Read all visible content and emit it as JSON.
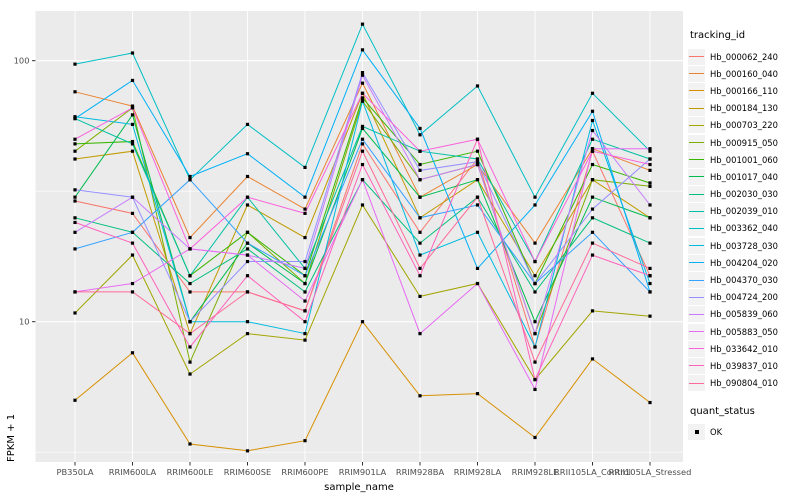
{
  "chart_data": {
    "type": "line",
    "title": "",
    "xlabel": "sample_name",
    "ylabel": "FPKM + 1",
    "y_scale": "log10",
    "ylim": [
      2.9,
      155
    ],
    "y_major_ticks": {
      "values": [
        10,
        100
      ],
      "labels": [
        "10",
        "100"
      ]
    },
    "y_minor_gridlines": [
      3.162,
      31.623
    ],
    "grid": "major-and-minor-white-on-gray",
    "legend_position": "right",
    "panel_background": "#EBEBEB",
    "gridline_color": "#FFFFFF",
    "tick_label_color": "#4D4D4D",
    "point_shape": "filled-square",
    "point_color": "#000000",
    "categories": [
      "PB350LA",
      "RRIM600LA",
      "RRIM600LE",
      "RRIM600SE",
      "RRIM600PE",
      "RRIM901LA",
      "RRIM928BA",
      "RRIM928LA",
      "RRIM928LE",
      "RRII105LA_Control",
      "RRII105LA_Stressed"
    ],
    "legend_title": "tracking_id",
    "series": [
      {
        "name": "Hb_000062_240",
        "color": "#F8766D",
        "values": [
          29,
          26,
          13,
          13,
          11,
          48,
          22,
          42,
          8,
          45,
          15
        ]
      },
      {
        "name": "Hb_000160_040",
        "color": "#EA8331",
        "values": [
          76,
          67,
          21,
          36,
          27,
          82,
          30,
          40,
          20,
          46,
          38
        ]
      },
      {
        "name": "Hb_000166_110",
        "color": "#D89000",
        "values": [
          5,
          7.6,
          3.4,
          3.2,
          3.5,
          10,
          5.2,
          5.3,
          3.6,
          7.2,
          4.9
        ]
      },
      {
        "name": "Hb_000184_130",
        "color": "#C09B00",
        "values": [
          42,
          45,
          9,
          28,
          21,
          75,
          25,
          35,
          15,
          35,
          25
        ]
      },
      {
        "name": "Hb_000703_220",
        "color": "#A3A500",
        "values": [
          10.8,
          18,
          6.3,
          9,
          8.5,
          28,
          12.5,
          14,
          6,
          11,
          10.5
        ]
      },
      {
        "name": "Hb_000915_050",
        "color": "#7CAE00",
        "values": [
          45,
          66,
          7,
          22,
          14,
          70,
          35,
          40,
          9,
          35,
          33
        ]
      },
      {
        "name": "Hb_001001_060",
        "color": "#39B600",
        "values": [
          48,
          49,
          15,
          22,
          15,
          72,
          40,
          45,
          14,
          40,
          34
        ]
      },
      {
        "name": "Hb_001017_040",
        "color": "#00BB4E",
        "values": [
          30,
          62,
          10,
          20,
          14,
          55,
          30,
          35,
          10,
          30,
          25
        ]
      },
      {
        "name": "Hb_002030_030",
        "color": "#00BF7D",
        "values": [
          25,
          22,
          14,
          19,
          13,
          35,
          20,
          30,
          13,
          25,
          20
        ]
      },
      {
        "name": "Hb_002039_010",
        "color": "#00C1A3",
        "values": [
          60,
          48,
          15,
          30,
          16,
          56,
          45,
          42,
          17,
          50,
          42
        ]
      },
      {
        "name": "Hb_003362_040",
        "color": "#00BFC4",
        "values": [
          97,
          107,
          35,
          57,
          39,
          138,
          52,
          80,
          30,
          75,
          45
        ]
      },
      {
        "name": "Hb_003728_030",
        "color": "#00BAE0",
        "values": [
          61,
          57,
          10,
          10,
          9,
          70,
          18,
          22,
          8,
          59,
          14
        ]
      },
      {
        "name": "Hb_004204_020",
        "color": "#00B0F6",
        "values": [
          60,
          84,
          36,
          44,
          30,
          110,
          55,
          16,
          28,
          64,
          13
        ]
      },
      {
        "name": "Hb_004370_030",
        "color": "#35A2FF",
        "values": [
          19,
          22,
          35,
          20,
          15,
          50,
          25,
          28,
          14,
          22,
          13
        ]
      },
      {
        "name": "Hb_004724_200",
        "color": "#9590FF",
        "values": [
          32,
          30,
          10,
          17,
          17,
          90,
          38,
          41,
          14,
          27,
          42
        ]
      },
      {
        "name": "Hb_005839_060",
        "color": "#C77CFF",
        "values": [
          22,
          30,
          19,
          18,
          16,
          88,
          35,
          40,
          9,
          54,
          28
        ]
      },
      {
        "name": "Hb_005883_050",
        "color": "#E76BF3",
        "values": [
          13,
          14,
          19,
          18,
          12,
          35,
          9,
          14,
          5.5,
          46,
          46
        ]
      },
      {
        "name": "Hb_033642_010",
        "color": "#FA62DB",
        "values": [
          50,
          66,
          19,
          30,
          26,
          75,
          45,
          50,
          17,
          45,
          40
        ]
      },
      {
        "name": "Hb_039837_010",
        "color": "#FF62BC",
        "values": [
          24,
          20,
          8,
          15,
          10,
          40,
          15,
          50,
          6,
          18,
          15
        ]
      },
      {
        "name": "Hb_090804_010",
        "color": "#FF6A98",
        "values": [
          13,
          13,
          9,
          13,
          11,
          45,
          16,
          30,
          7,
          20,
          16
        ]
      }
    ],
    "quant_legend": {
      "title": "quant_status",
      "items": [
        {
          "label": "OK",
          "shape": "filled-square",
          "color": "#000000"
        }
      ]
    }
  }
}
